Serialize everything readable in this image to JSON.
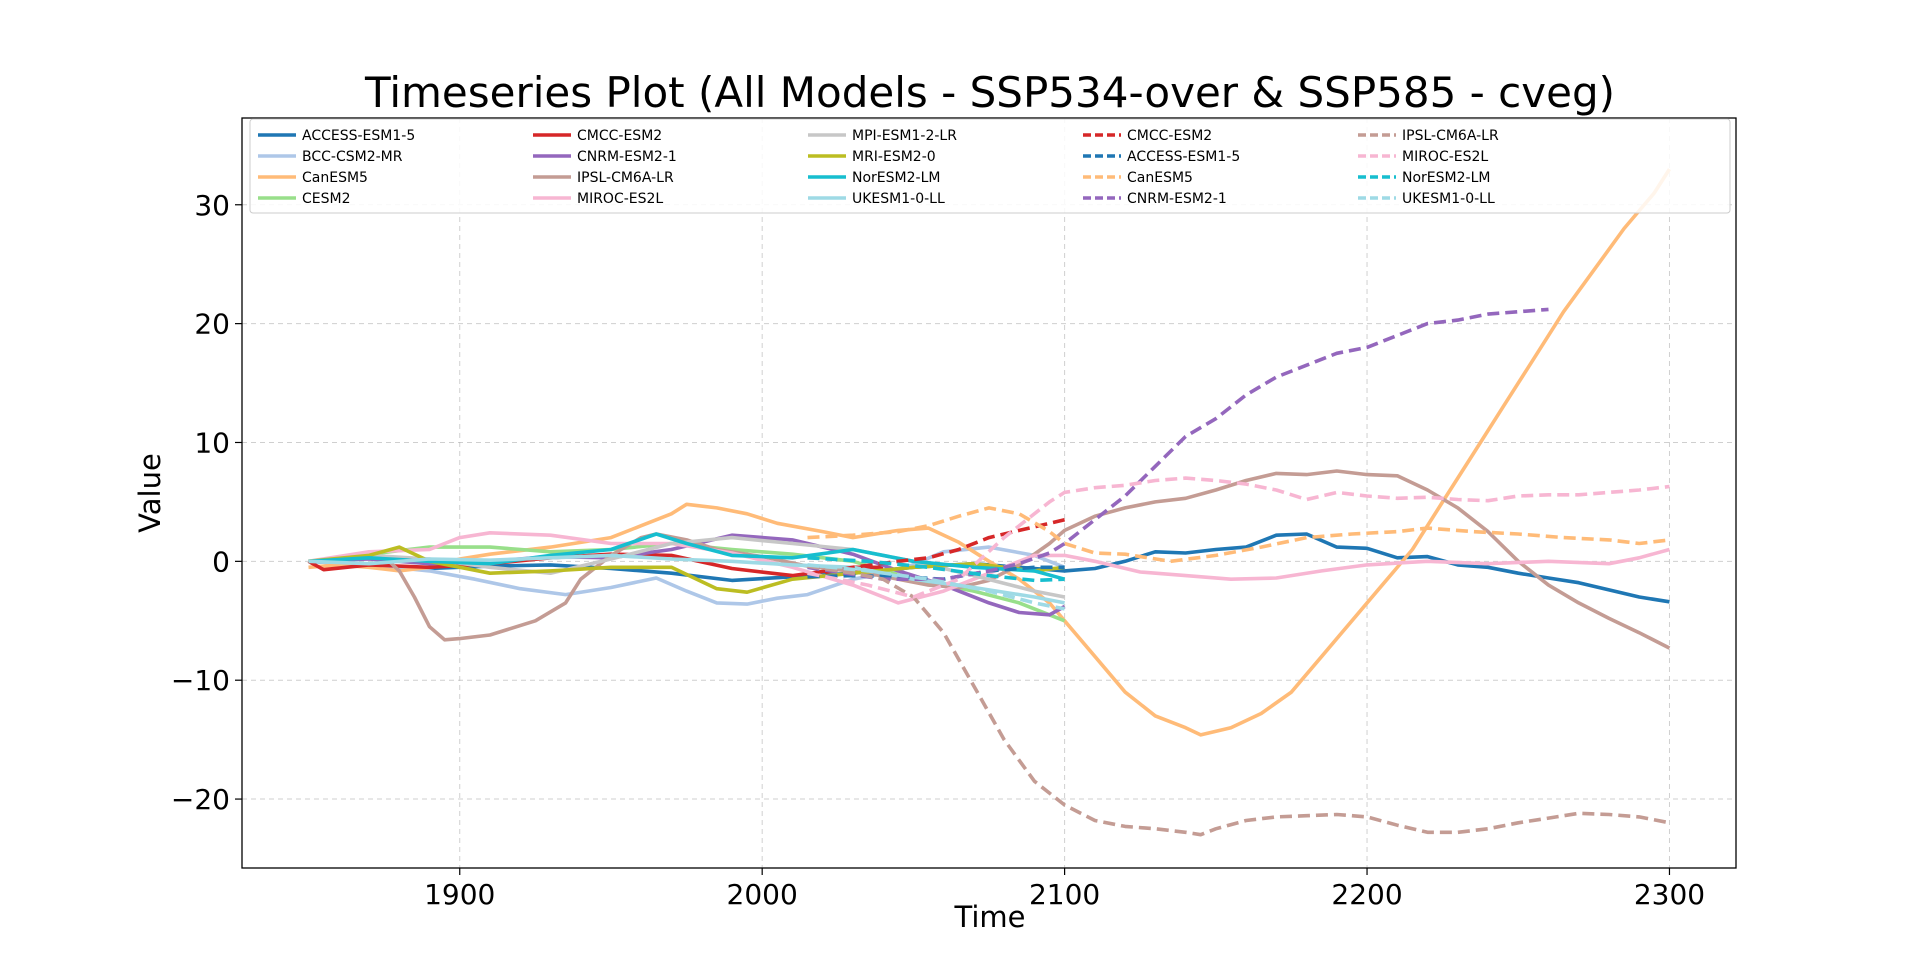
{
  "chart_data": {
    "type": "line",
    "title": "Timeseries Plot (All Models - SSP534-over & SSP585 - cveg)",
    "xlabel": "Time",
    "ylabel": "Value",
    "xlim": [
      1828,
      2322
    ],
    "ylim": [
      -25.8,
      37.3
    ],
    "xticks": [
      1900,
      2000,
      2100,
      2200,
      2300
    ],
    "xtick_labels": [
      "1900",
      "2000",
      "2100",
      "2200",
      "2300"
    ],
    "yticks": [
      -20,
      -10,
      0,
      10,
      20,
      30
    ],
    "ytick_labels": [
      "−20",
      "−10",
      "0",
      "10",
      "20",
      "30"
    ],
    "grid": true,
    "legend_position": "top",
    "legend_columns": 6,
    "series": [
      {
        "name": "ACCESS-ESM1-5",
        "color": "#1f77b4",
        "dash": false,
        "x": [
          1850,
          1870,
          1890,
          1910,
          1930,
          1950,
          1970,
          1990,
          2010,
          2030,
          2050,
          2070,
          2090,
          2100,
          2110,
          2120,
          2130,
          2140,
          2150,
          2160,
          2170,
          2180,
          2190,
          2200,
          2210,
          2220,
          2230,
          2240,
          2250,
          2260,
          2270,
          2280,
          2290,
          2300
        ],
        "y": [
          0,
          -0.3,
          -0.6,
          -0.4,
          -0.3,
          -0.6,
          -1.0,
          -1.6,
          -1.3,
          -1.0,
          -0.5,
          -0.2,
          -0.6,
          -0.8,
          -0.6,
          0.0,
          0.8,
          0.7,
          1.0,
          1.2,
          2.2,
          2.3,
          1.2,
          1.1,
          0.3,
          0.4,
          -0.3,
          -0.5,
          -1.0,
          -1.4,
          -1.8,
          -2.4,
          -3.0,
          -3.4
        ]
      },
      {
        "name": "BCC-CSM2-MR",
        "color": "#aec7e8",
        "dash": false,
        "x": [
          1850,
          1870,
          1890,
          1905,
          1920,
          1935,
          1950,
          1965,
          1975,
          1985,
          1995,
          2005,
          2015,
          2030,
          2045,
          2060,
          2075,
          2090,
          2100
        ],
        "y": [
          0,
          -0.3,
          -0.8,
          -1.5,
          -2.3,
          -2.8,
          -2.2,
          -1.4,
          -2.5,
          -3.5,
          -3.6,
          -3.1,
          -2.8,
          -1.5,
          -0.8,
          0.8,
          1.2,
          0.5,
          -0.5
        ]
      },
      {
        "name": "CanESM5",
        "color": "#ffbb78",
        "dash": false,
        "x": [
          1850,
          1860,
          1870,
          1880,
          1890,
          1900,
          1910,
          1930,
          1950,
          1960,
          1970,
          1975,
          1985,
          1995,
          2005,
          2020,
          2030,
          2045,
          2055,
          2065,
          2075,
          2085,
          2095,
          2100,
          2110,
          2120,
          2130,
          2140,
          2145,
          2155,
          2165,
          2175,
          2185,
          2195,
          2205,
          2215,
          2225,
          2235,
          2245,
          2255,
          2265,
          2275,
          2285,
          2295,
          2300
        ],
        "y": [
          -0.5,
          -0.3,
          -0.5,
          -0.8,
          -0.5,
          0.2,
          0.6,
          1.2,
          2.0,
          3.0,
          4.0,
          4.8,
          4.5,
          4.0,
          3.2,
          2.5,
          2.0,
          2.6,
          2.8,
          1.6,
          0.0,
          -1.5,
          -3.5,
          -5.0,
          -8.0,
          -11.0,
          -13.0,
          -14.0,
          -14.6,
          -14.0,
          -12.8,
          -11.0,
          -8.0,
          -5.0,
          -2.0,
          1.0,
          5.0,
          9.0,
          13.0,
          17.0,
          21.0,
          24.5,
          28.0,
          31.0,
          33.0
        ]
      },
      {
        "name": "CESM2",
        "color": "#98df8a",
        "dash": false,
        "x": [
          1850,
          1870,
          1890,
          1910,
          1930,
          1950,
          1970,
          1990,
          2010,
          2030,
          2050,
          2070,
          2085,
          2100
        ],
        "y": [
          0,
          0.6,
          1.2,
          1.2,
          0.8,
          1.0,
          1.5,
          1.0,
          0.6,
          0.0,
          -1.5,
          -2.5,
          -3.5,
          -5.0
        ]
      },
      {
        "name": "CMCC-ESM2",
        "color": "#d62728",
        "dash": false,
        "x": [
          1850,
          1855,
          1870,
          1890,
          1910,
          1930,
          1950,
          1970,
          1990,
          2010,
          2030,
          2040
        ],
        "y": [
          0,
          -0.7,
          -0.3,
          -0.5,
          -0.2,
          0.3,
          0.6,
          0.5,
          -0.6,
          -1.2,
          -0.5,
          -0.5
        ]
      },
      {
        "name": "CNRM-ESM2-1",
        "color": "#9467bd",
        "dash": false,
        "x": [
          1850,
          1870,
          1890,
          1910,
          1930,
          1950,
          1970,
          1990,
          2010,
          2030,
          2045,
          2060,
          2075,
          2085,
          2095,
          2100
        ],
        "y": [
          0,
          0.2,
          -0.2,
          0.0,
          0.4,
          0.3,
          1.0,
          2.2,
          1.8,
          0.6,
          -0.8,
          -2.0,
          -3.5,
          -4.3,
          -4.5,
          -3.8
        ]
      },
      {
        "name": "IPSL-CM6A-LR",
        "color": "#c49c94",
        "dash": false,
        "x": [
          1850,
          1865,
          1875,
          1880,
          1885,
          1890,
          1895,
          1900,
          1910,
          1925,
          1935,
          1940,
          1950,
          1960,
          1965,
          1975,
          1985,
          2000,
          2015,
          2035,
          2045,
          2055,
          2065,
          2075,
          2085,
          2095,
          2100,
          2110,
          2120,
          2130,
          2140,
          2150,
          2160,
          2170,
          2180,
          2190,
          2200,
          2210,
          2220,
          2230,
          2240,
          2250,
          2260,
          2270,
          2280,
          2290,
          2300
        ],
        "y": [
          0,
          0.3,
          0.4,
          -0.8,
          -3.0,
          -5.5,
          -6.6,
          -6.5,
          -6.2,
          -5.0,
          -3.5,
          -1.5,
          0.5,
          2.0,
          2.3,
          1.8,
          1.0,
          0.4,
          -0.4,
          -1.0,
          -1.5,
          -2.0,
          -2.2,
          -1.6,
          -0.3,
          1.5,
          2.6,
          3.8,
          4.5,
          5.0,
          5.3,
          6.0,
          6.8,
          7.4,
          7.3,
          7.6,
          7.3,
          7.2,
          6.0,
          4.5,
          2.5,
          0.0,
          -2.0,
          -3.5,
          -4.8,
          -6.0,
          -7.3
        ]
      },
      {
        "name": "MIROC-ES2L",
        "color": "#f7b6d2",
        "dash": false,
        "x": [
          1850,
          1870,
          1890,
          1900,
          1910,
          1930,
          1950,
          1970,
          1990,
          2010,
          2030,
          2045,
          2060,
          2075,
          2090,
          2100,
          2110,
          2125,
          2140,
          2155,
          2170,
          2185,
          2200,
          2220,
          2240,
          2260,
          2280,
          2290,
          2300
        ],
        "y": [
          0,
          0.8,
          1.0,
          2.0,
          2.4,
          2.2,
          1.5,
          1.5,
          0.7,
          -0.5,
          -2.0,
          -3.5,
          -2.5,
          -1.0,
          0.5,
          0.5,
          0.0,
          -0.9,
          -1.2,
          -1.5,
          -1.4,
          -0.8,
          -0.3,
          0.0,
          -0.2,
          0.0,
          -0.2,
          0.3,
          1.0
        ]
      },
      {
        "name": "MPI-ESM1-2-LR",
        "color": "#c7c7c7",
        "dash": false,
        "x": [
          1850,
          1870,
          1890,
          1910,
          1930,
          1950,
          1970,
          1990,
          2010,
          2030,
          2050,
          2070,
          2090,
          2100
        ],
        "y": [
          0,
          0.5,
          0.2,
          -0.5,
          -1.0,
          0.2,
          1.5,
          2.0,
          1.5,
          1.0,
          0.0,
          -1.2,
          -2.5,
          -3.0
        ]
      },
      {
        "name": "MRI-ESM2-0",
        "color": "#bcbd22",
        "dash": false,
        "x": [
          1850,
          1870,
          1880,
          1890,
          1910,
          1930,
          1950,
          1970,
          1985,
          1995,
          2010,
          2030,
          2050,
          2070,
          2090,
          2100
        ],
        "y": [
          0,
          0.5,
          1.2,
          0.0,
          -1.0,
          -0.8,
          -0.5,
          -0.5,
          -2.3,
          -2.6,
          -1.5,
          -1.0,
          -0.5,
          -0.2,
          -0.8,
          -0.5
        ]
      },
      {
        "name": "NorESM2-LM",
        "color": "#17becf",
        "dash": false,
        "x": [
          1850,
          1870,
          1890,
          1910,
          1930,
          1950,
          1965,
          1975,
          1990,
          2010,
          2030,
          2050,
          2070,
          2090,
          2100
        ],
        "y": [
          0,
          0.3,
          0.0,
          -0.2,
          0.5,
          1.0,
          2.3,
          1.5,
          0.5,
          0.3,
          1.0,
          0.0,
          -0.5,
          -0.8,
          -1.5
        ]
      },
      {
        "name": "UKESM1-0-LL",
        "color": "#9edae5",
        "dash": false,
        "x": [
          1850,
          1870,
          1890,
          1910,
          1930,
          1950,
          1970,
          1990,
          2010,
          2030,
          2050,
          2070,
          2090,
          2100
        ],
        "y": [
          0,
          -0.2,
          0.2,
          0.1,
          0.3,
          0.5,
          0.2,
          0.0,
          -0.3,
          -0.5,
          -1.5,
          -2.2,
          -3.0,
          -3.5
        ]
      },
      {
        "name": "CMCC-ESM2",
        "color": "#d62728",
        "dash": true,
        "x": [
          2015,
          2030,
          2045,
          2055,
          2065,
          2075,
          2085,
          2095,
          2100
        ],
        "y": [
          -1.2,
          -0.5,
          0.0,
          0.3,
          1.0,
          2.0,
          2.6,
          3.2,
          3.5
        ]
      },
      {
        "name": "ACCESS-ESM1-5",
        "color": "#1f77b4",
        "dash": true,
        "x": [
          2015,
          2030,
          2045,
          2060,
          2075,
          2090,
          2100
        ],
        "y": [
          -1.3,
          -1.2,
          -1.3,
          -1.5,
          -0.8,
          -0.5,
          -0.5
        ]
      },
      {
        "name": "CanESM5",
        "color": "#ffbb78",
        "dash": true,
        "x": [
          2015,
          2030,
          2045,
          2055,
          2065,
          2075,
          2085,
          2095,
          2100,
          2110,
          2120,
          2135,
          2150,
          2165,
          2180,
          2195,
          2210,
          2220,
          2235,
          2250,
          2265,
          2280,
          2290,
          2300
        ],
        "y": [
          2.0,
          2.2,
          2.5,
          3.0,
          3.8,
          4.5,
          4.0,
          2.5,
          1.5,
          0.7,
          0.6,
          0.0,
          0.5,
          1.2,
          2.0,
          2.3,
          2.5,
          2.8,
          2.5,
          2.3,
          2.0,
          1.8,
          1.5,
          1.8
        ]
      },
      {
        "name": "CNRM-ESM2-1",
        "color": "#9467bd",
        "dash": true,
        "x": [
          2015,
          2040,
          2060,
          2075,
          2085,
          2095,
          2100,
          2110,
          2120,
          2130,
          2140,
          2150,
          2160,
          2170,
          2180,
          2190,
          2200,
          2210,
          2220,
          2230,
          2240,
          2250,
          2260
        ],
        "y": [
          -0.5,
          -1.5,
          -1.5,
          -0.8,
          -0.2,
          0.7,
          1.5,
          3.5,
          5.5,
          8.0,
          10.5,
          12.0,
          14.0,
          15.5,
          16.5,
          17.5,
          18.0,
          19.0,
          20.0,
          20.3,
          20.8,
          21.0,
          21.2
        ]
      },
      {
        "name": "IPSL-CM6A-LR",
        "color": "#c49c94",
        "dash": true,
        "x": [
          2015,
          2030,
          2040,
          2050,
          2060,
          2070,
          2080,
          2090,
          2100,
          2110,
          2120,
          2130,
          2140,
          2145,
          2150,
          2160,
          2170,
          2180,
          2190,
          2200,
          2210,
          2220,
          2230,
          2240,
          2250,
          2260,
          2270,
          2280,
          2290,
          2300
        ],
        "y": [
          -0.4,
          -1.0,
          -1.5,
          -3.0,
          -6.0,
          -10.5,
          -15.0,
          -18.5,
          -20.5,
          -21.8,
          -22.3,
          -22.5,
          -22.8,
          -23.0,
          -22.5,
          -21.8,
          -21.5,
          -21.4,
          -21.3,
          -21.5,
          -22.2,
          -22.8,
          -22.8,
          -22.5,
          -22.0,
          -21.6,
          -21.2,
          -21.3,
          -21.5,
          -22.0
        ]
      },
      {
        "name": "MIROC-ES2L",
        "color": "#f7b6d2",
        "dash": true,
        "x": [
          2015,
          2035,
          2050,
          2065,
          2080,
          2095,
          2100,
          2110,
          2120,
          2130,
          2140,
          2150,
          2160,
          2170,
          2180,
          2190,
          2200,
          2210,
          2220,
          2230,
          2240,
          2250,
          2260,
          2270,
          2280,
          2290,
          2300
        ],
        "y": [
          -1.0,
          -2.0,
          -3.0,
          -1.5,
          2.0,
          5.0,
          5.8,
          6.2,
          6.4,
          6.8,
          7.0,
          6.8,
          6.5,
          6.0,
          5.2,
          5.8,
          5.5,
          5.3,
          5.4,
          5.2,
          5.1,
          5.5,
          5.6,
          5.6,
          5.8,
          6.0,
          6.3
        ]
      },
      {
        "name": "NorESM2-LM",
        "color": "#17becf",
        "dash": true,
        "x": [
          2015,
          2035,
          2055,
          2075,
          2090,
          2100
        ],
        "y": [
          0.3,
          0.0,
          -0.5,
          -1.2,
          -1.6,
          -1.5
        ]
      },
      {
        "name": "UKESM1-0-LL",
        "color": "#9edae5",
        "dash": true,
        "x": [
          2015,
          2035,
          2055,
          2075,
          2090,
          2100
        ],
        "y": [
          -0.3,
          -0.8,
          -1.5,
          -2.5,
          -3.5,
          -4.0
        ]
      }
    ]
  }
}
